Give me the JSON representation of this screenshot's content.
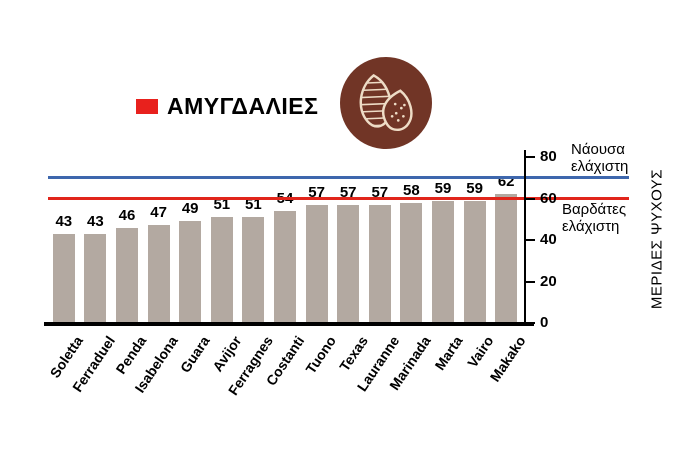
{
  "legend": {
    "label": "ΑΜΥΓΔΑΛΙΕΣ",
    "color": "#e8211d"
  },
  "icon": {
    "name": "almonds-icon",
    "bg_color": "#713526",
    "stroke_color": "#eedcc6"
  },
  "annotations": {
    "naoussa": {
      "line1": "Νάουσα",
      "line2": "ελάχιστη"
    },
    "vardates": {
      "line1": "Βαρδάτες",
      "line2": "ελάχιστη"
    }
  },
  "chart_data": {
    "type": "bar",
    "title": "ΑΜΥΓΔΑΛΙΕΣ",
    "categories": [
      "Soletta",
      "Ferraduel",
      "Penda",
      "Isabelona",
      "Guara",
      "Avijor",
      "Ferragnes",
      "Costanti",
      "Tuono",
      "Texas",
      "Lauranne",
      "Marinada",
      "Marta",
      "Vairo",
      "Makako"
    ],
    "values": [
      43,
      43,
      46,
      47,
      49,
      51,
      51,
      54,
      57,
      57,
      57,
      58,
      59,
      59,
      62
    ],
    "bar_color": "#b3a9a1",
    "xlabel": "",
    "ylabel": "ΜΕΡΙΔΕΣ ΨΥΧΟΥΣ",
    "ylim": [
      0,
      80
    ],
    "yticks": [
      0,
      20,
      40,
      60,
      80
    ],
    "grid": false,
    "legend_position": "top-left",
    "reference_lines": [
      {
        "label": "Νάουσα ελάχιστη",
        "value": 70,
        "color": "#3e67ad"
      },
      {
        "label": "Βαρδάτες ελάχιστη",
        "value": 60,
        "color": "#e1251b"
      }
    ]
  }
}
